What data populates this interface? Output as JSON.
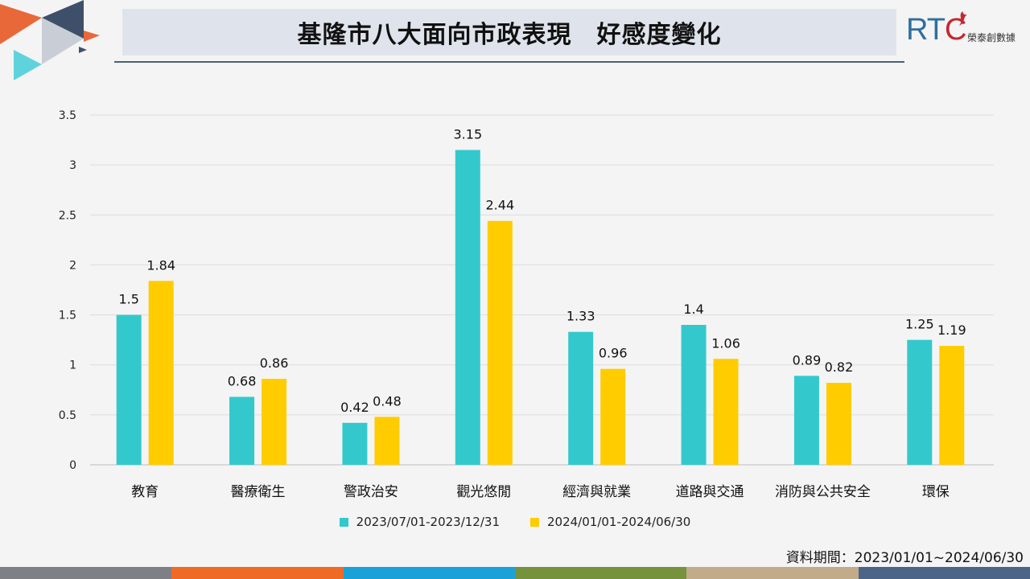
{
  "header": {
    "title": "基隆市八大面向市政表現　好感度變化",
    "logo_mark_left": "RT",
    "logo_mark_c": "C",
    "logo_sub": "榮泰創數據"
  },
  "chart_data": {
    "type": "bar",
    "categories": [
      "教育",
      "醫療衛生",
      "警政治安",
      "觀光悠閒",
      "經濟與就業",
      "道路與交通",
      "消防與公共安全",
      "環保"
    ],
    "series": [
      {
        "name": "2023/07/01-2023/12/31",
        "color": "#33c9cc",
        "values": [
          1.5,
          0.68,
          0.42,
          3.15,
          1.33,
          1.4,
          0.89,
          1.25
        ]
      },
      {
        "name": "2024/01/01-2024/06/30",
        "color": "#ffcc00",
        "values": [
          1.84,
          0.86,
          0.48,
          2.44,
          0.96,
          1.06,
          0.82,
          1.19
        ]
      }
    ],
    "ylim": [
      0,
      3.5
    ],
    "yticks": [
      "0",
      "0.5",
      "1",
      "1.5",
      "2",
      "2.5",
      "3",
      "3.5"
    ],
    "grid": true,
    "legend": "bottom-center"
  },
  "note": "資料期間：2023/01/01~2024/06/30",
  "colors": {
    "series1": "#33c9cc",
    "series2": "#ffcc00",
    "footer": [
      "#7f8085",
      "#ef6a24",
      "#1aa2d8",
      "#76923c",
      "#c2ab89",
      "#4d6489"
    ]
  }
}
